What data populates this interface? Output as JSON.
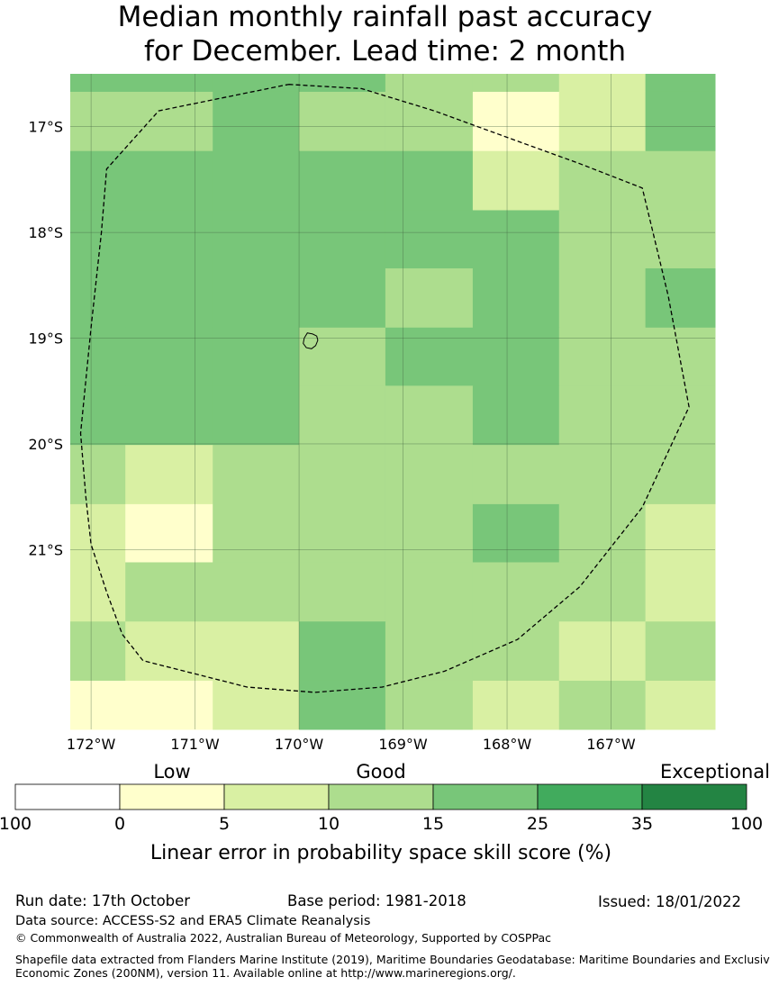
{
  "title": {
    "line1": "Median monthly rainfall past accuracy",
    "line2": "for December. Lead time: 2 month"
  },
  "map": {
    "lat_ticks": [
      "17°S",
      "18°S",
      "19°S",
      "20°S",
      "21°S"
    ],
    "lon_ticks": [
      "172°W",
      "171°W",
      "170°W",
      "169°W",
      "168°W",
      "167°W"
    ],
    "grid": {
      "columns_lon_west_edges": [
        172.2,
        171.67,
        170.83,
        170.0,
        169.17,
        168.33,
        167.5,
        166.67
      ],
      "rows": [
        {
          "lat_top": 16.5,
          "lat_bottom": 16.67,
          "cats": [
            4,
            4,
            4,
            4,
            3,
            3,
            2,
            4
          ]
        },
        {
          "lat_top": 16.67,
          "lat_bottom": 17.23,
          "cats": [
            3,
            3,
            4,
            3,
            3,
            1,
            2,
            4
          ]
        },
        {
          "lat_top": 17.23,
          "lat_bottom": 17.79,
          "cats": [
            4,
            4,
            4,
            4,
            4,
            2,
            3,
            3
          ]
        },
        {
          "lat_top": 17.79,
          "lat_bottom": 18.34,
          "cats": [
            4,
            4,
            4,
            4,
            4,
            4,
            3,
            3
          ]
        },
        {
          "lat_top": 18.34,
          "lat_bottom": 18.9,
          "cats": [
            4,
            4,
            4,
            4,
            3,
            4,
            3,
            4
          ]
        },
        {
          "lat_top": 18.9,
          "lat_bottom": 19.45,
          "cats": [
            4,
            4,
            4,
            3,
            4,
            4,
            3,
            3
          ]
        },
        {
          "lat_top": 19.45,
          "lat_bottom": 20.01,
          "cats": [
            4,
            4,
            4,
            3,
            3,
            4,
            3,
            3
          ]
        },
        {
          "lat_top": 20.01,
          "lat_bottom": 20.57,
          "cats": [
            3,
            2,
            3,
            3,
            3,
            3,
            3,
            3
          ]
        },
        {
          "lat_top": 20.57,
          "lat_bottom": 21.12,
          "cats": [
            2,
            1,
            3,
            3,
            3,
            4,
            3,
            2
          ]
        },
        {
          "lat_top": 21.12,
          "lat_bottom": 21.68,
          "cats": [
            2,
            3,
            3,
            3,
            3,
            3,
            3,
            2
          ]
        },
        {
          "lat_top": 21.68,
          "lat_bottom": 22.24,
          "cats": [
            3,
            2,
            2,
            4,
            3,
            3,
            2,
            3
          ]
        },
        {
          "lat_top": 22.24,
          "lat_bottom": 22.7,
          "cats": [
            1,
            1,
            2,
            4,
            3,
            2,
            3,
            2
          ]
        }
      ]
    },
    "boundary_lonlat": [
      [
        170.1,
        16.6
      ],
      [
        169.4,
        16.64
      ],
      [
        168.7,
        16.85
      ],
      [
        168.0,
        17.1
      ],
      [
        167.3,
        17.35
      ],
      [
        166.7,
        17.58
      ],
      [
        166.45,
        18.6
      ],
      [
        166.25,
        19.65
      ],
      [
        166.7,
        20.6
      ],
      [
        167.3,
        21.35
      ],
      [
        167.9,
        21.85
      ],
      [
        168.6,
        22.15
      ],
      [
        169.2,
        22.3
      ],
      [
        169.85,
        22.35
      ],
      [
        170.5,
        22.3
      ],
      [
        171.1,
        22.15
      ],
      [
        171.5,
        22.05
      ],
      [
        171.7,
        21.8
      ],
      [
        171.85,
        21.4
      ],
      [
        172.0,
        20.95
      ],
      [
        172.05,
        20.5
      ],
      [
        172.1,
        19.9
      ],
      [
        172.0,
        18.9
      ],
      [
        171.9,
        18.0
      ],
      [
        171.85,
        17.4
      ],
      [
        171.35,
        16.85
      ],
      [
        170.1,
        16.6
      ]
    ],
    "island_lonlat": [
      [
        169.92,
        18.95
      ],
      [
        169.87,
        18.96
      ],
      [
        169.83,
        18.98
      ],
      [
        169.82,
        19.02
      ],
      [
        169.84,
        19.07
      ],
      [
        169.88,
        19.1
      ],
      [
        169.93,
        19.09
      ],
      [
        169.96,
        19.05
      ],
      [
        169.95,
        19.0
      ],
      [
        169.92,
        18.95
      ]
    ]
  },
  "legend": {
    "group_labels": [
      "Low",
      "Good",
      "Exceptional"
    ],
    "ticks": [
      "100",
      "0",
      "5",
      "10",
      "15",
      "25",
      "35",
      "100"
    ],
    "colors": [
      "#ffffff",
      "#ffffcc",
      "#d9f0a3",
      "#addd8e",
      "#78c679",
      "#41ab5d",
      "#238443"
    ],
    "title": "Linear error in probability space skill score (%)"
  },
  "footer": {
    "run_date": "Run date: 17th October",
    "base_period": "Base period: 1981-2018",
    "issued": "Issued: 18/01/2022",
    "data_source": "Data source: ACCESS-S2 and ERA5 Climate Reanalysis",
    "copyright": "© Commonwealth of Australia 2022, Australian Bureau of Meteorology, Supported by COSPPac",
    "shapefile_line1": "Shapefile data extracted from Flanders Marine Institute (2019), Maritime Boundaries Geodatabase: Maritime Boundaries and Exclusive",
    "shapefile_line2": "Economic Zones (200NM), version 11. Available online at http://www.marineregions.org/."
  }
}
